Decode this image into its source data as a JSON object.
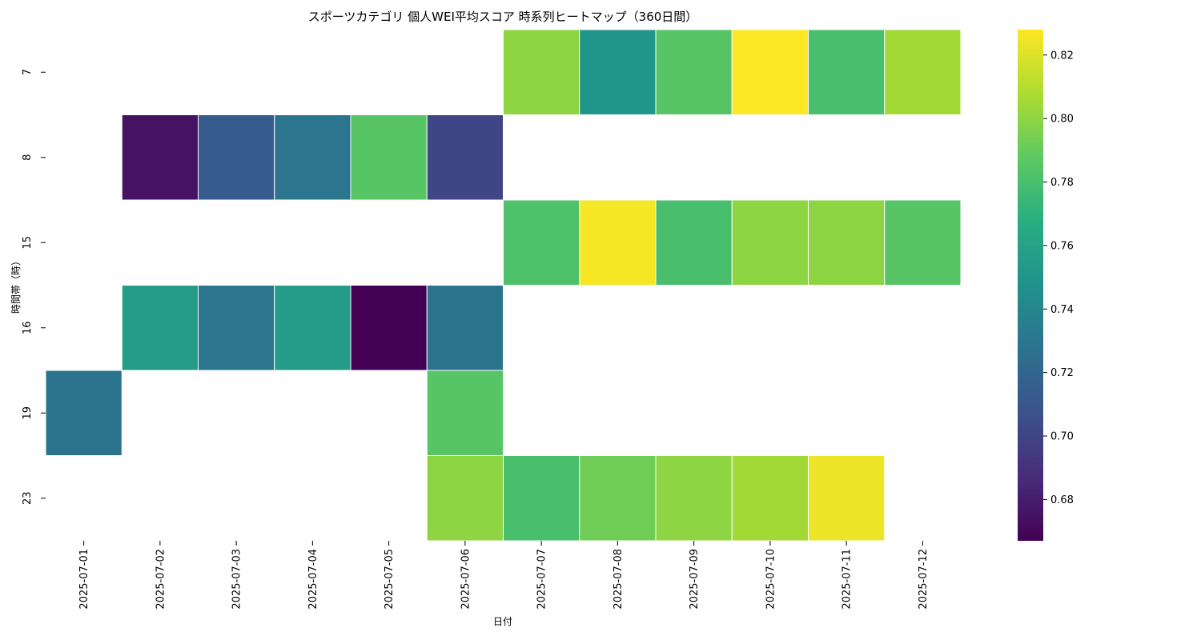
{
  "chart_data": {
    "type": "heatmap",
    "title": "スポーツカテゴリ 個人WEI平均スコア 時系列ヒートマップ（360日間）",
    "xlabel": "日付",
    "ylabel": "時間帯（時）",
    "x": [
      "2025-07-01",
      "2025-07-02",
      "2025-07-03",
      "2025-07-04",
      "2025-07-05",
      "2025-07-06",
      "2025-07-07",
      "2025-07-08",
      "2025-07-09",
      "2025-07-10",
      "2025-07-11",
      "2025-07-12"
    ],
    "y": [
      "7",
      "8",
      "15",
      "16",
      "19",
      "23"
    ],
    "values": [
      [
        null,
        null,
        null,
        null,
        null,
        null,
        0.8,
        0.75,
        0.785,
        0.828,
        0.78,
        0.805
      ],
      [
        null,
        0.675,
        0.713,
        0.73,
        0.785,
        0.7,
        null,
        null,
        null,
        null,
        null,
        null
      ],
      [
        null,
        null,
        null,
        null,
        null,
        null,
        0.782,
        0.826,
        0.78,
        0.8,
        0.8,
        0.785
      ],
      [
        null,
        0.755,
        0.73,
        0.755,
        0.667,
        0.728,
        null,
        null,
        null,
        null,
        null,
        null
      ],
      [
        0.728,
        null,
        null,
        null,
        null,
        0.785,
        null,
        null,
        null,
        null,
        null,
        null
      ],
      [
        null,
        null,
        null,
        null,
        null,
        0.8,
        0.78,
        0.792,
        0.8,
        0.805,
        0.824,
        null
      ]
    ],
    "colorscale": "viridis",
    "vmin": 0.667,
    "vmax": 0.828,
    "colorbar_ticks": [
      0.68,
      0.7,
      0.72,
      0.74,
      0.76,
      0.78,
      0.8,
      0.82
    ],
    "colorbar_tick_labels": [
      "0.68",
      "0.70",
      "0.72",
      "0.74",
      "0.76",
      "0.78",
      "0.80",
      "0.82"
    ],
    "grid": false,
    "legend": "colorbar-right"
  }
}
